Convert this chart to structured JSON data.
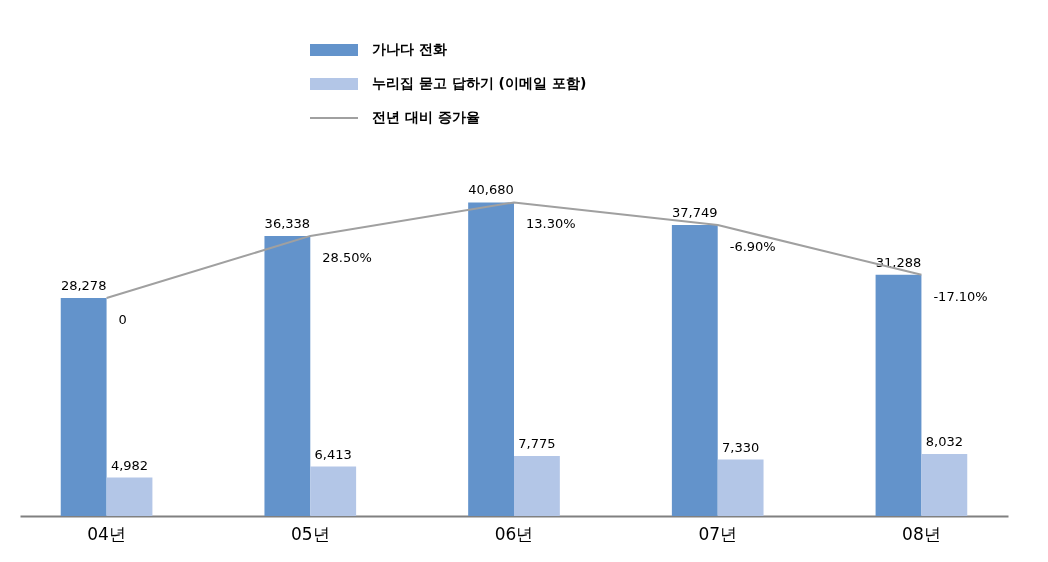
{
  "chart_data": {
    "type": "bar",
    "categories": [
      "04년",
      "05년",
      "06년",
      "07년",
      "08년"
    ],
    "series": [
      {
        "name": "가나다 전화",
        "color": "#6393cb",
        "values": [
          28278,
          36338,
          40680,
          37749,
          31288
        ],
        "value_labels": [
          "28,278",
          "36,338",
          "40,680",
          "37,749",
          "31,288"
        ]
      },
      {
        "name": "누리집 묻고 답하기 (이메일 포함)",
        "color": "#b3c6e7",
        "values": [
          4982,
          6413,
          7775,
          7330,
          8032
        ],
        "value_labels": [
          "4,982",
          "6,413",
          "7,775",
          "7,330",
          "8,032"
        ]
      },
      {
        "name": "전년 대비 증가율",
        "type": "line",
        "color": "#a0a0a0",
        "values": [
          28278,
          36338,
          40680,
          37749,
          31288
        ]
      }
    ],
    "annotations": [
      {
        "text": "0",
        "x": "04년",
        "y": 28278
      },
      {
        "text": "28.50%",
        "x": "05년",
        "y": 36338
      },
      {
        "text": "13.30%",
        "x": "06년",
        "y": 40680
      },
      {
        "text": "-6.90%",
        "x": "07년",
        "y": 37749
      },
      {
        "text": "-17.10%",
        "x": "08년",
        "y": 31288
      }
    ],
    "legend": "top",
    "grid": false,
    "marker": "none"
  }
}
